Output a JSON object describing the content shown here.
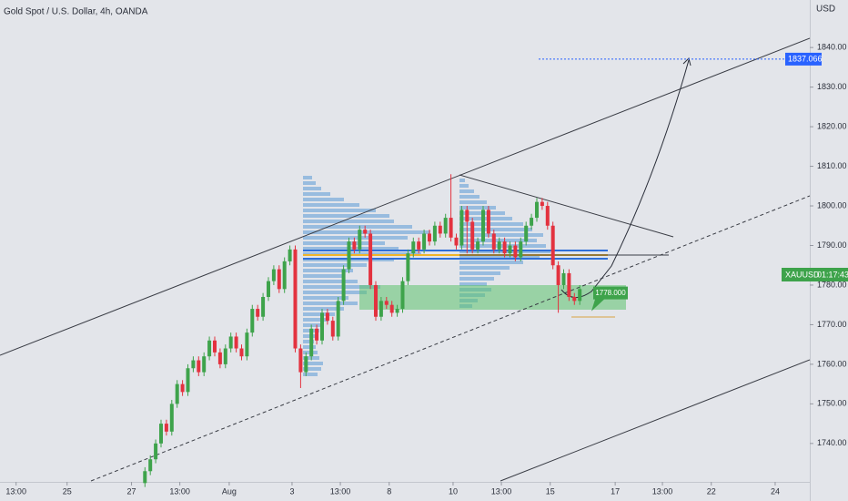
{
  "chart_data": {
    "type": "candlestick",
    "title": "Gold Spot / U.S. Dollar, 4h, OANDA",
    "currency": "USD",
    "symbol": "XAUUSD",
    "countdown": "01:17:43",
    "up_color": "#3ea34b",
    "down_color": "#e3323f",
    "target_price": 1837.066,
    "annotation_price": {
      "value": 1778,
      "label": "1778.000"
    },
    "xlim": [
      0,
      150.85
    ],
    "ylim": [
      1730.3,
      1852
    ],
    "xticks": [
      {
        "value": 3,
        "label": "13:00"
      },
      {
        "value": 12.5,
        "label": "25"
      },
      {
        "value": 24.5,
        "label": "27"
      },
      {
        "value": 33.5,
        "label": "13:00"
      },
      {
        "value": 42.7,
        "label": "Aug"
      },
      {
        "value": 54.4,
        "label": "3"
      },
      {
        "value": 63.4,
        "label": "13:00"
      },
      {
        "value": 72.5,
        "label": "8"
      },
      {
        "value": 84.4,
        "label": "10"
      },
      {
        "value": 93.4,
        "label": "13:00"
      },
      {
        "value": 102.5,
        "label": "15"
      },
      {
        "value": 114.6,
        "label": "17"
      },
      {
        "value": 123.4,
        "label": "13:00"
      },
      {
        "value": 132.5,
        "label": "22"
      },
      {
        "value": 144.4,
        "label": "24"
      }
    ],
    "yticks": [
      {
        "value": 1740,
        "label": "1740.00"
      },
      {
        "value": 1750,
        "label": "1750.00"
      },
      {
        "value": 1760,
        "label": "1760.00"
      },
      {
        "value": 1770,
        "label": "1770.00"
      },
      {
        "value": 1780,
        "label": "1780.00"
      },
      {
        "value": 1790,
        "label": "1790.00"
      },
      {
        "value": 1800,
        "label": "1800.00"
      },
      {
        "value": 1810,
        "label": "1810.00"
      },
      {
        "value": 1820,
        "label": "1820.00"
      },
      {
        "value": 1830,
        "label": "1830.00"
      },
      {
        "value": 1840,
        "label": "1840.00"
      }
    ],
    "x": [
      27,
      28,
      29,
      30,
      31,
      32,
      33,
      34,
      35,
      36,
      37,
      38,
      39,
      40,
      41,
      42,
      43,
      44,
      45,
      46,
      47,
      48,
      49,
      50,
      51,
      52,
      53,
      54,
      55,
      56,
      57,
      58,
      59,
      60,
      61,
      62,
      63,
      64,
      65,
      66,
      67,
      68,
      69,
      70,
      71,
      72,
      73,
      74,
      75,
      76,
      77,
      78,
      79,
      80,
      81,
      82,
      83,
      84,
      85,
      86,
      87,
      88,
      89,
      90,
      91,
      92,
      93,
      94,
      95,
      96,
      97,
      98,
      99,
      100,
      101,
      102,
      103,
      104,
      105,
      106,
      107,
      108
    ],
    "open": [
      1730,
      1733,
      1736,
      1740,
      1745,
      1743,
      1750,
      1755,
      1753,
      1759,
      1761,
      1758,
      1762,
      1766,
      1763,
      1760,
      1764,
      1767,
      1764,
      1762,
      1768,
      1774,
      1772,
      1777,
      1781,
      1784,
      1779,
      1786,
      1789,
      1764,
      1758,
      1762,
      1769,
      1766,
      1773,
      1771,
      1767,
      1776,
      1784,
      1791,
      1789,
      1794,
      1793,
      1780,
      1772,
      1776,
      1775,
      1773,
      1774,
      1781,
      1788,
      1791,
      1789,
      1793,
      1791,
      1795,
      1793,
      1797,
      1792,
      1790,
      1799,
      1796,
      1789,
      1791,
      1799,
      1793,
      1789,
      1791,
      1788,
      1790,
      1787,
      1791,
      1795,
      1797,
      1801,
      1800,
      1795,
      1785,
      1780,
      1783,
      1777,
      1776
    ],
    "high": [
      1734,
      1737,
      1741,
      1746,
      1746,
      1751,
      1756,
      1756,
      1760,
      1762,
      1762,
      1763,
      1767,
      1767,
      1764,
      1765,
      1768,
      1768,
      1765,
      1769,
      1775,
      1775,
      1778,
      1782,
      1785,
      1785,
      1787,
      1790,
      1790,
      1765,
      1763,
      1770,
      1770,
      1774,
      1774,
      1772,
      1777,
      1785,
      1792,
      1792,
      1795,
      1795,
      1794,
      1781,
      1777,
      1777,
      1776,
      1775,
      1782,
      1789,
      1792,
      1792,
      1794,
      1794,
      1796,
      1796,
      1798,
      1808,
      1793,
      1800,
      1800,
      1797,
      1792,
      1800,
      1800,
      1794,
      1792,
      1792,
      1791,
      1791,
      1792,
      1796,
      1798,
      1802,
      1802,
      1801,
      1796,
      1786,
      1784,
      1784,
      1778,
      1780
    ],
    "low": [
      1729,
      1732,
      1735,
      1739,
      1742,
      1742,
      1749,
      1752,
      1752,
      1758,
      1757,
      1757,
      1761,
      1762,
      1759,
      1759,
      1763,
      1763,
      1761,
      1761,
      1767,
      1771,
      1771,
      1776,
      1780,
      1778,
      1778,
      1785,
      1763,
      1754,
      1757,
      1761,
      1765,
      1765,
      1770,
      1766,
      1766,
      1775,
      1783,
      1788,
      1788,
      1792,
      1779,
      1771,
      1771,
      1774,
      1772,
      1772,
      1773,
      1780,
      1787,
      1788,
      1788,
      1790,
      1790,
      1792,
      1792,
      1791,
      1789,
      1789,
      1788,
      1788,
      1788,
      1790,
      1792,
      1788,
      1788,
      1787,
      1787,
      1786,
      1786,
      1790,
      1794,
      1796,
      1799,
      1794,
      1784,
      1773,
      1779,
      1776,
      1775,
      1775
    ],
    "close": [
      1733,
      1736,
      1740,
      1745,
      1743,
      1750,
      1755,
      1753,
      1759,
      1761,
      1758,
      1762,
      1766,
      1763,
      1760,
      1764,
      1767,
      1764,
      1762,
      1768,
      1774,
      1772,
      1777,
      1781,
      1784,
      1779,
      1786,
      1789,
      1764,
      1758,
      1762,
      1769,
      1766,
      1773,
      1771,
      1767,
      1776,
      1784,
      1791,
      1789,
      1794,
      1793,
      1780,
      1772,
      1776,
      1775,
      1773,
      1774,
      1781,
      1788,
      1791,
      1789,
      1793,
      1791,
      1795,
      1793,
      1797,
      1792,
      1790,
      1799,
      1796,
      1789,
      1791,
      1799,
      1793,
      1789,
      1791,
      1788,
      1790,
      1787,
      1791,
      1795,
      1797,
      1801,
      1800,
      1795,
      1785,
      1780,
      1783,
      1777,
      1776,
      1779
    ]
  }
}
